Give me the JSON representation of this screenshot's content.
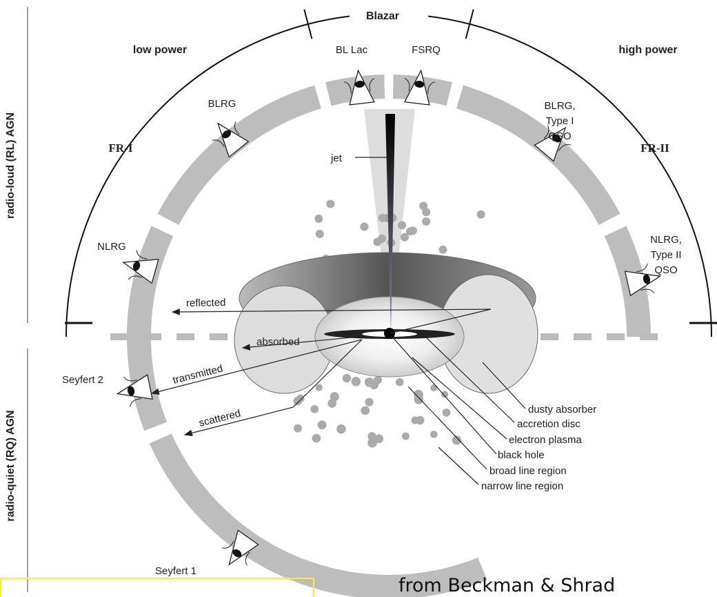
{
  "header": {
    "blazar": "Blazar",
    "low_power": "low power",
    "high_power": "high power",
    "fr1": "FR-I",
    "fr2": "FR-II"
  },
  "side_labels": {
    "radio_loud": "radio-loud (RL) AGN",
    "radio_quiet": "radio-quiet (RQ) AGN"
  },
  "views": {
    "bl_lac": "BL Lac",
    "fsrq": "FSRQ",
    "blrg": "BLRG",
    "blrg_qso": {
      "lines": [
        "BLRG,",
        "Type I",
        "QSO"
      ]
    },
    "nlrg": "NLRG",
    "nlrg_qso": {
      "lines": [
        "NLRG,",
        "Type II",
        "QSO"
      ]
    },
    "seyfert2": "Seyfert 2",
    "seyfert1": "Seyfert 1"
  },
  "rays": {
    "jet": "jet",
    "reflected": "reflected",
    "absorbed": "absorbed",
    "transmitted": "transmitted",
    "scattered": "scattered"
  },
  "components": [
    "dusty absorber",
    "accretion disc",
    "electron plasma",
    "black hole",
    "broad line region",
    "narrow line region"
  ],
  "caption": "from Beckman & Shrad"
}
